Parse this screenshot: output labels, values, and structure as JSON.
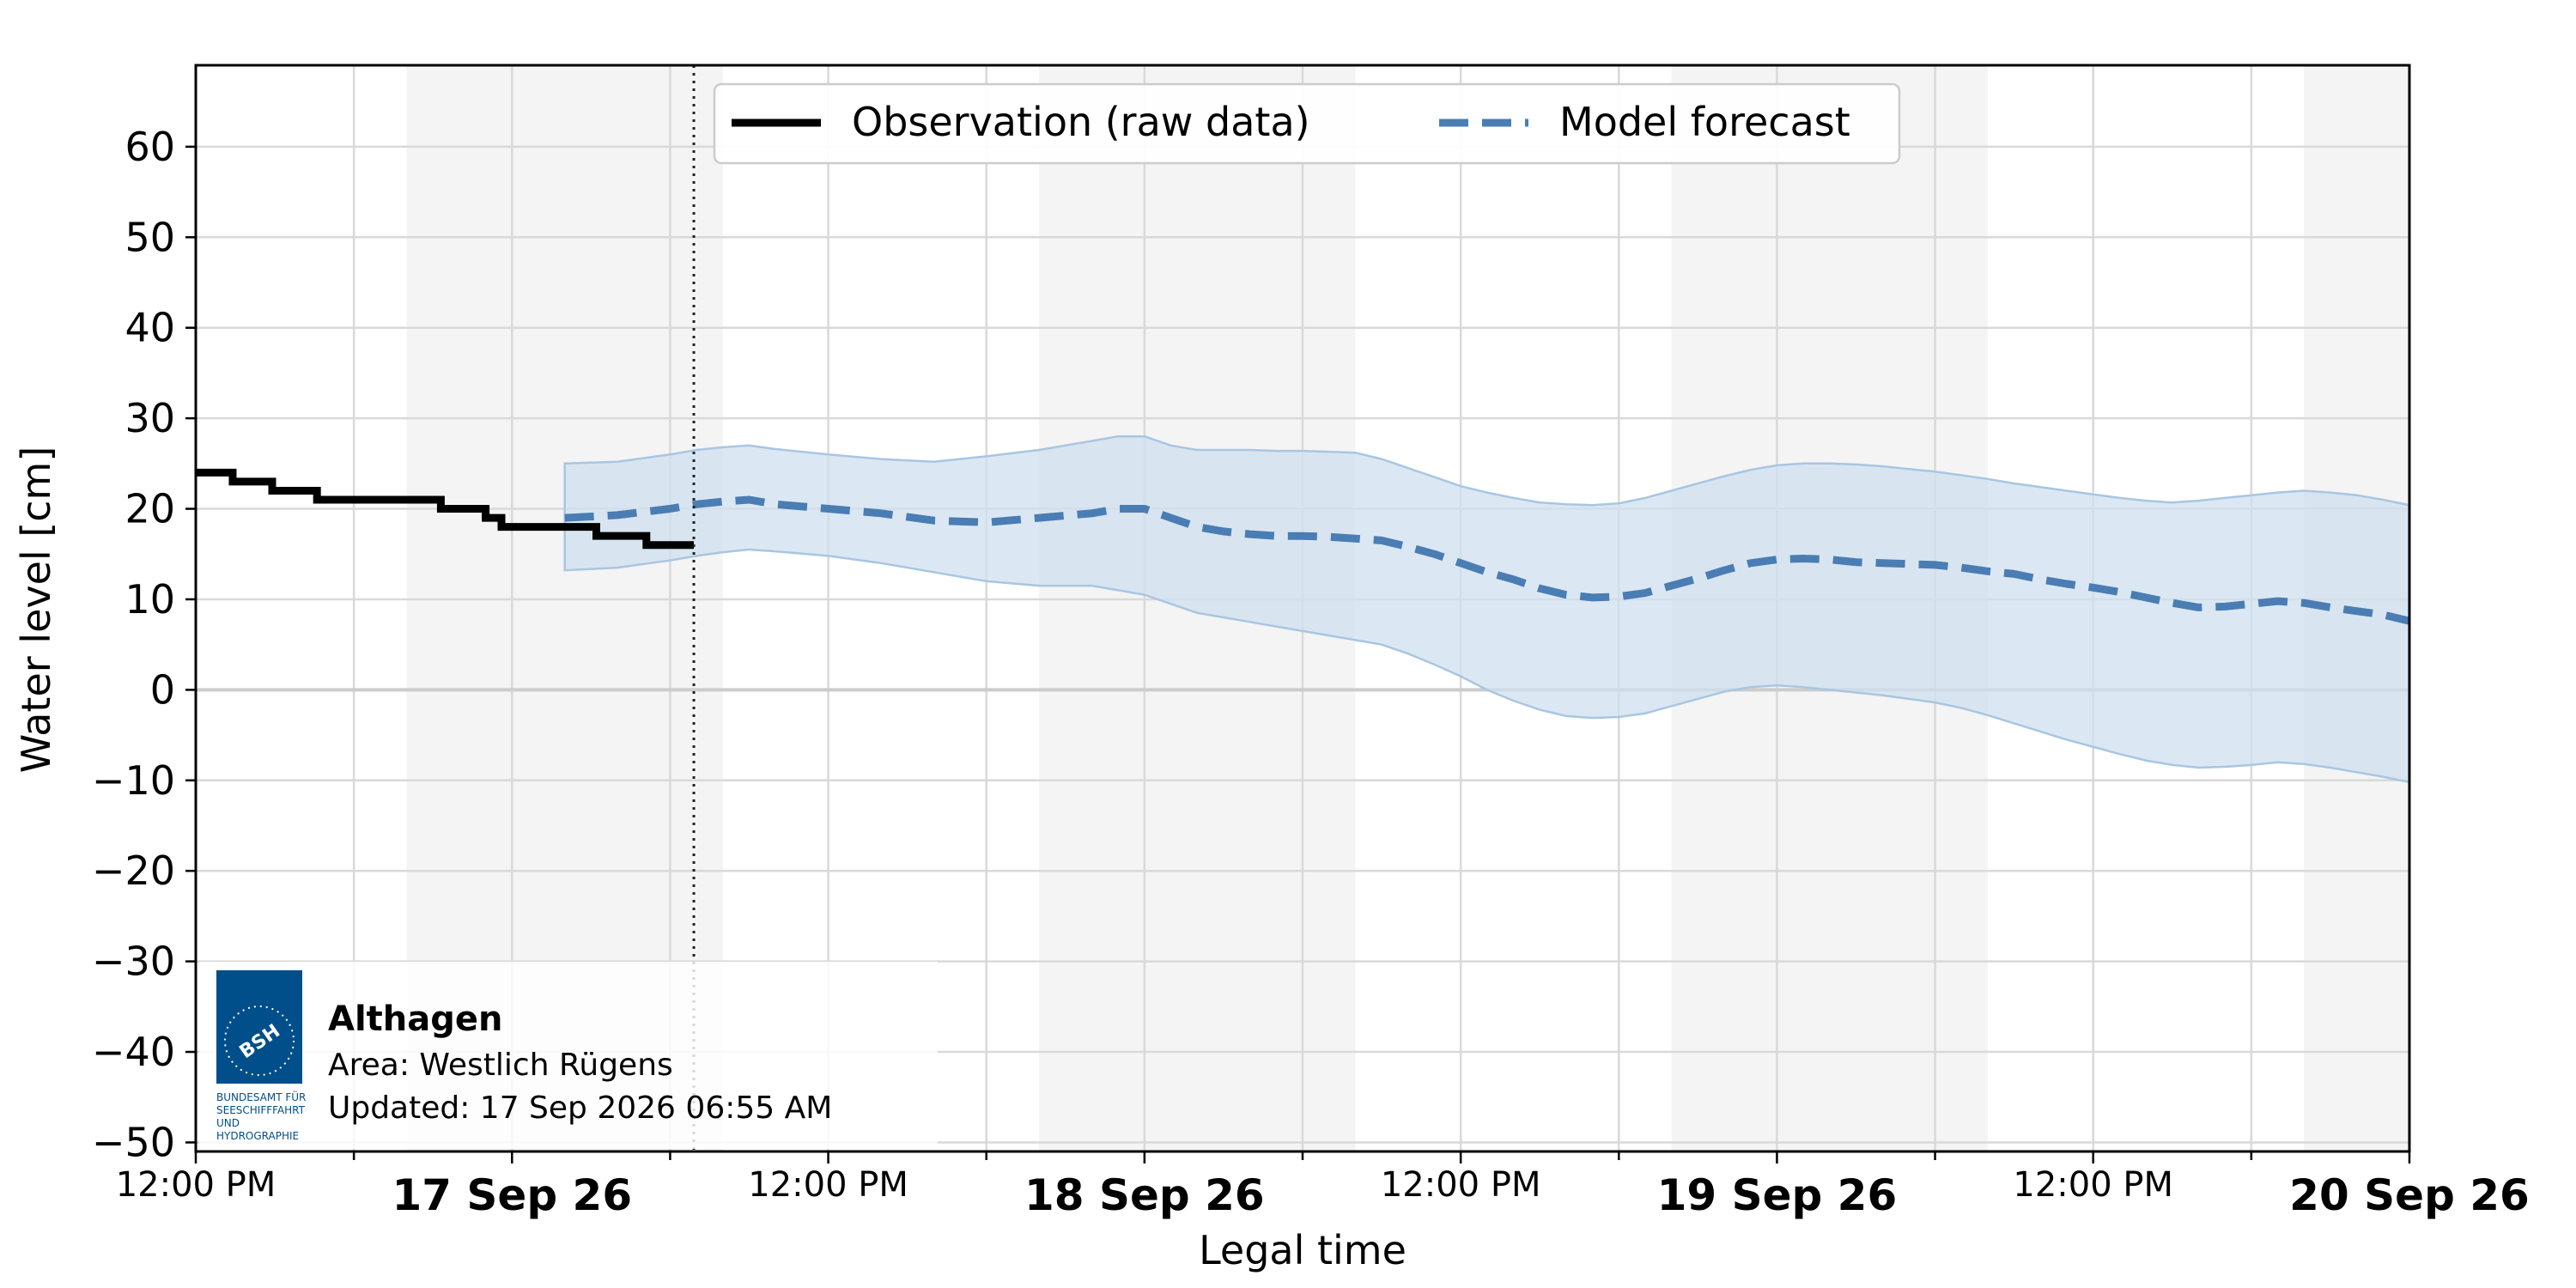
{
  "chart_data": {
    "type": "line",
    "xlabel": "Legal time",
    "ylabel": "Water level [cm]",
    "ylim": [
      -51,
      69
    ],
    "yticks": [
      60,
      50,
      40,
      30,
      20,
      10,
      0,
      -10,
      -20,
      -30,
      -40,
      -50
    ],
    "ytick_labels": [
      "60",
      "50",
      "40",
      "30",
      "20",
      "10",
      "0",
      "−10",
      "−20",
      "−30",
      "−40",
      "−50"
    ],
    "x_range_hours": [
      0,
      84
    ],
    "x_ticks_major": [
      {
        "hour": 0,
        "label": "12:00 PM",
        "bold": false
      },
      {
        "hour": 12,
        "label": "17 Sep 26",
        "bold": true
      },
      {
        "hour": 24,
        "label": "12:00 PM",
        "bold": false
      },
      {
        "hour": 36,
        "label": "18 Sep 26",
        "bold": true
      },
      {
        "hour": 48,
        "label": "12:00 PM",
        "bold": false
      },
      {
        "hour": 60,
        "label": "19 Sep 26",
        "bold": true
      },
      {
        "hour": 72,
        "label": "12:00 PM",
        "bold": false
      },
      {
        "hour": 84,
        "label": "20 Sep 26",
        "bold": true
      }
    ],
    "night_bands_hours": [
      [
        8,
        20
      ],
      [
        32,
        44
      ],
      [
        56,
        68
      ],
      [
        80,
        84
      ]
    ],
    "now_hour": 18.9,
    "grid": true,
    "legend": "top-center",
    "series": [
      {
        "name": "Observation (raw data)",
        "style": "step",
        "color": "#000000",
        "x": [
          0,
          1.4,
          2.9,
          4.6,
          9.3,
          11,
          11.6,
          15.2,
          17.1,
          18.9
        ],
        "y": [
          24,
          23,
          22,
          21,
          20,
          19,
          18,
          17,
          16,
          16
        ]
      },
      {
        "name": "Model forecast",
        "style": "dashed",
        "color": "#4a7db3",
        "x": [
          14,
          16,
          18,
          19,
          20,
          21,
          22,
          24,
          26,
          28,
          30,
          32,
          34,
          35,
          36,
          37,
          38,
          39,
          40,
          41,
          42,
          43,
          44,
          45,
          46,
          47,
          48,
          49,
          50,
          51,
          52,
          53,
          54,
          55,
          56,
          57,
          58,
          59,
          60,
          61,
          62,
          63,
          64,
          65,
          66,
          67,
          68,
          69,
          70,
          71,
          72,
          73,
          74,
          75,
          76,
          77,
          78,
          79,
          80,
          81,
          82,
          83,
          84
        ],
        "y": [
          19,
          19.3,
          20,
          20.5,
          20.8,
          21,
          20.5,
          20,
          19.5,
          18.7,
          18.5,
          19,
          19.5,
          20,
          20,
          19,
          18,
          17.5,
          17.2,
          17,
          17,
          16.9,
          16.7,
          16.5,
          15.8,
          15,
          14,
          13,
          12.2,
          11.2,
          10.5,
          10.2,
          10.3,
          10.7,
          11.5,
          12.3,
          13.2,
          14,
          14.4,
          14.5,
          14.4,
          14.1,
          14,
          13.9,
          13.8,
          13.5,
          13.1,
          12.8,
          12.2,
          11.7,
          11.3,
          10.8,
          10.2,
          9.6,
          9.1,
          9.2,
          9.5,
          9.8,
          9.6,
          9.1,
          8.7,
          8.3,
          7.6
        ]
      }
    ],
    "forecast_band": {
      "x": [
        14,
        16,
        18,
        19,
        20,
        21,
        22,
        24,
        26,
        28,
        30,
        32,
        34,
        35,
        36,
        37,
        38,
        39,
        40,
        41,
        42,
        43,
        44,
        45,
        46,
        47,
        48,
        49,
        50,
        51,
        52,
        53,
        54,
        55,
        56,
        57,
        58,
        59,
        60,
        61,
        62,
        63,
        64,
        65,
        66,
        67,
        68,
        69,
        70,
        71,
        72,
        73,
        74,
        75,
        76,
        77,
        78,
        79,
        80,
        81,
        82,
        83,
        84
      ],
      "upper": [
        25,
        25.2,
        26,
        26.5,
        26.8,
        27,
        26.6,
        26,
        25.5,
        25.2,
        25.8,
        26.5,
        27.5,
        28,
        28,
        27,
        26.5,
        26.5,
        26.5,
        26.4,
        26.4,
        26.3,
        26.2,
        25.5,
        24.5,
        23.5,
        22.5,
        21.8,
        21.2,
        20.7,
        20.5,
        20.4,
        20.6,
        21.2,
        22,
        22.8,
        23.6,
        24.3,
        24.8,
        25,
        25,
        24.9,
        24.7,
        24.4,
        24.1,
        23.7,
        23.3,
        22.8,
        22.4,
        22,
        21.6,
        21.2,
        20.9,
        20.7,
        20.9,
        21.2,
        21.5,
        21.8,
        22,
        21.8,
        21.5,
        21,
        20.4
      ],
      "lower": [
        13.2,
        13.5,
        14.3,
        14.8,
        15.2,
        15.5,
        15.3,
        14.8,
        14,
        13,
        12,
        11.5,
        11.5,
        11,
        10.5,
        9.5,
        8.5,
        8,
        7.5,
        7,
        6.5,
        6,
        5.5,
        5,
        4,
        2.8,
        1.5,
        0,
        -1.2,
        -2.2,
        -2.9,
        -3.1,
        -3,
        -2.6,
        -1.8,
        -1,
        -0.2,
        0.3,
        0.5,
        0.3,
        0,
        -0.3,
        -0.6,
        -1,
        -1.4,
        -2,
        -2.8,
        -3.7,
        -4.6,
        -5.5,
        -6.3,
        -7.1,
        -7.8,
        -8.3,
        -8.6,
        -8.5,
        -8.3,
        -8,
        -8.2,
        -8.6,
        -9.1,
        -9.6,
        -10.2
      ]
    },
    "info_box": {
      "station": "Althagen",
      "area": "Area: Westlich Rügens",
      "updated": "Updated: 17 Sep 2026 06:55 AM"
    },
    "logo": {
      "text": "BSH",
      "caption_lines": [
        "BUNDESAMT FÜR",
        "SEESCHIFFFAHRT",
        "UND",
        "HYDROGRAPHIE"
      ],
      "color": "#004e8a"
    },
    "colors": {
      "observation": "#000000",
      "forecast": "#4a7db3",
      "band_fill": "#cfe0ef",
      "band_edge": "#a9c6e2",
      "night_band": "#f4f4f4",
      "grid": "#d9d9d9"
    }
  }
}
